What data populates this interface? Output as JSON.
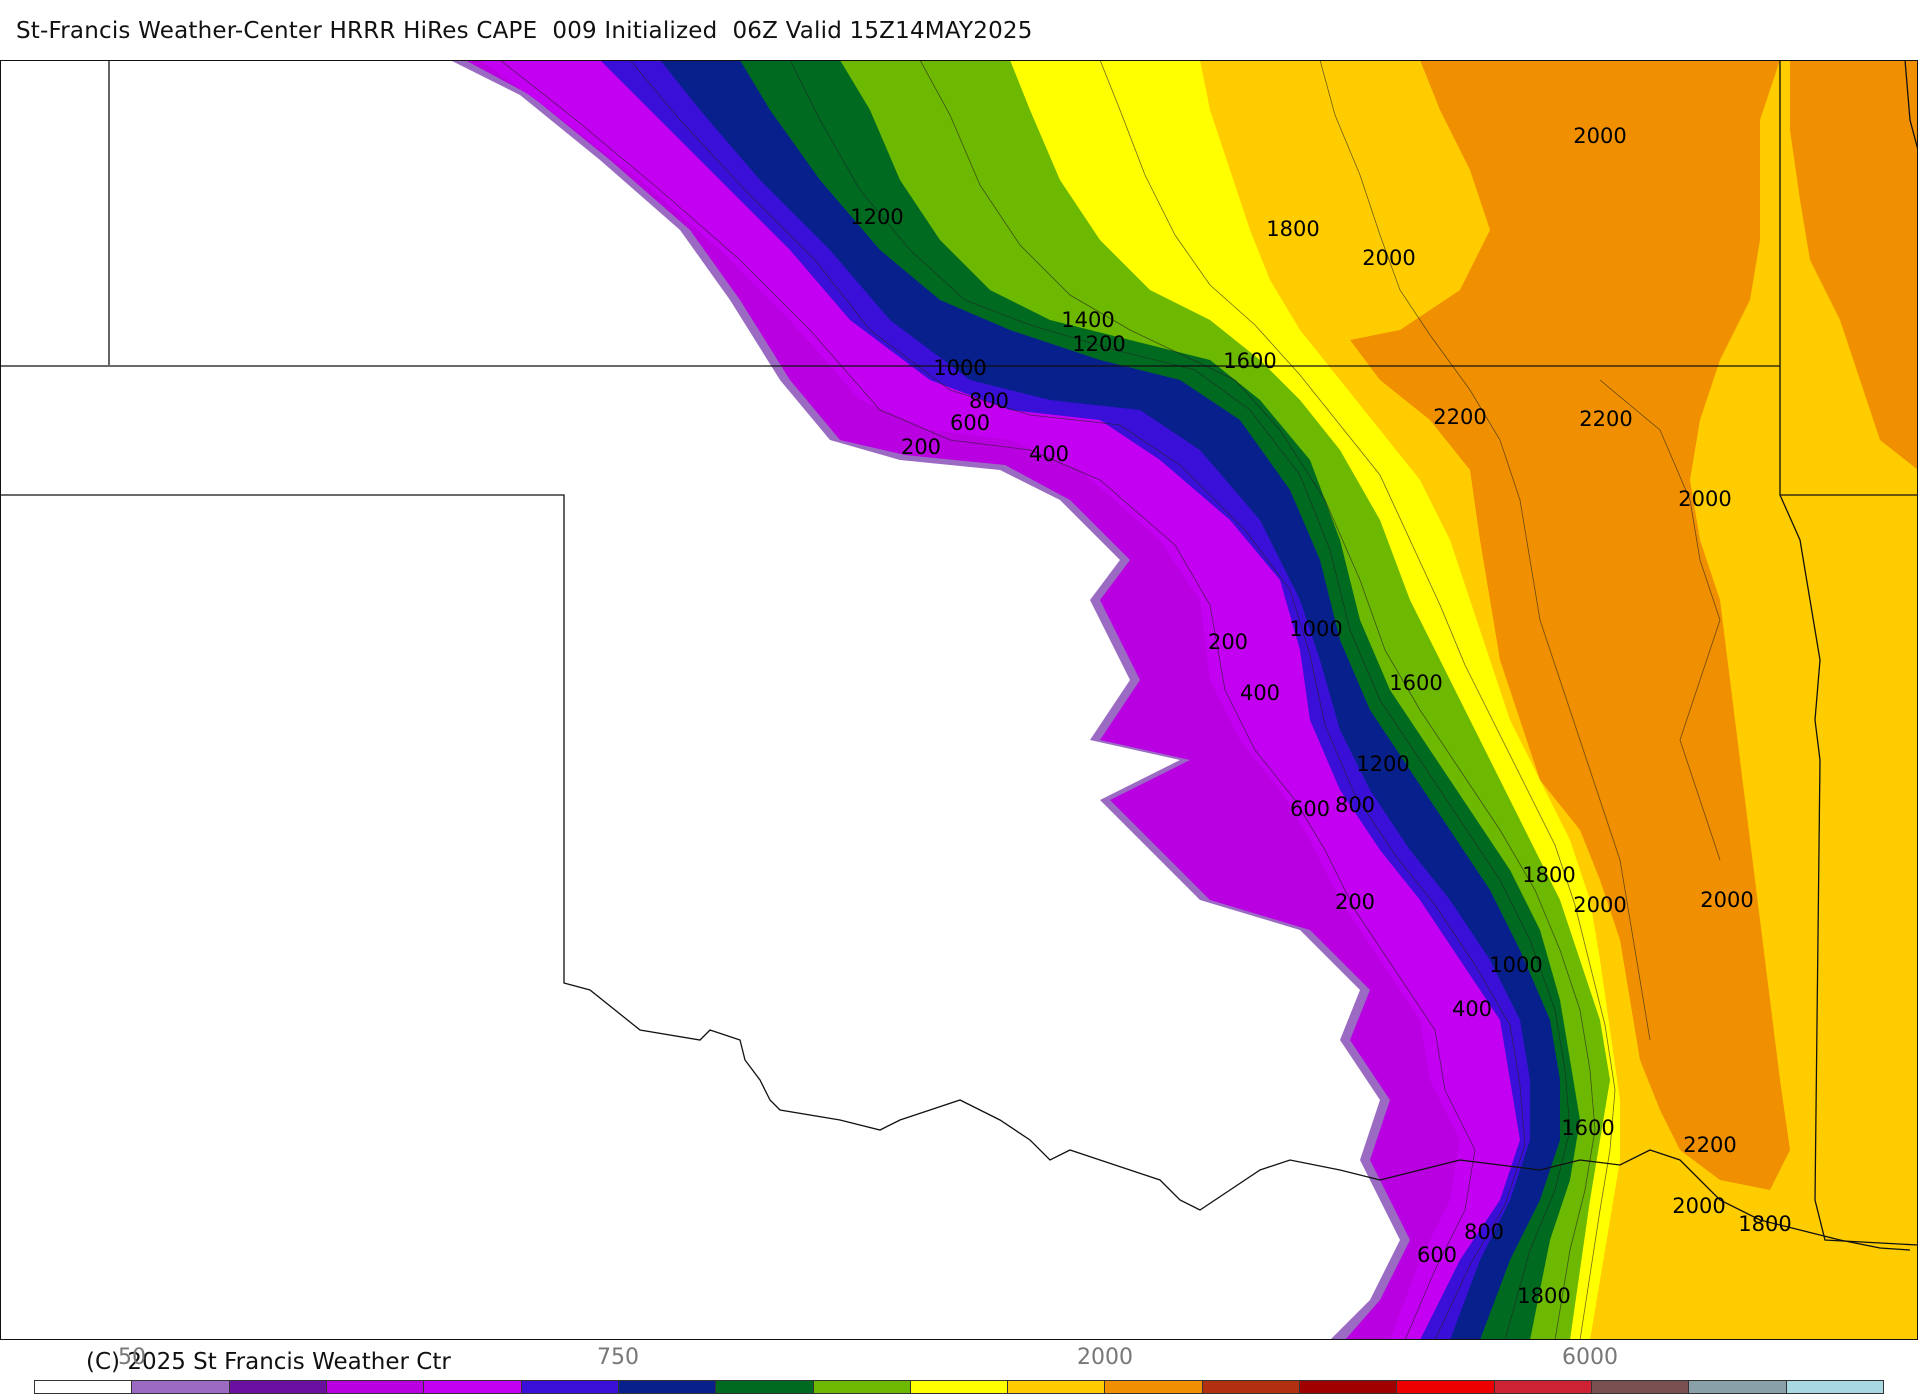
{
  "title": "St-Francis Weather-Center HRRR HiRes CAPE  009 Initialized  06Z Valid 15Z14MAY2025",
  "copyright": "(C) 2025 St Francis Weather Ctr",
  "colors": {
    "c1": "#9b6bc4",
    "c2": "#6b0fa0",
    "c3": "#b800e0",
    "c4": "#c400f2",
    "c5": "#3a10d8",
    "c6": "#08208c",
    "c7": "#006b20",
    "c8": "#6db800",
    "c9": "#ffff00",
    "c10": "#ffcc00",
    "c11": "#f09000",
    "c12": "#b03010",
    "c13": "#a00000",
    "c14": "#ee0000",
    "c15": "#cc2233",
    "c16": "#7a5050",
    "c17": "#8aa0a8",
    "c18": "#a8d8e0",
    "white": "#ffffff"
  },
  "colorbar": {
    "colors": [
      "#ffffff",
      "#9b6bc4",
      "#6b0fa0",
      "#b800e0",
      "#c400f2",
      "#3a10d8",
      "#08208c",
      "#006b20",
      "#6db800",
      "#ffff00",
      "#ffcc00",
      "#f09000",
      "#b03010",
      "#a00000",
      "#ee0000",
      "#cc2233",
      "#7a5050",
      "#8aa0a8",
      "#a8d8e0"
    ],
    "tick_labels": [
      "50",
      "750",
      "2000",
      "6000"
    ]
  },
  "contour_labels": [
    "1200",
    "1800",
    "2000",
    "2000",
    "1400",
    "1200",
    "1000",
    "800",
    "600",
    "200",
    "400",
    "1600",
    "2200",
    "2200",
    "2000",
    "200",
    "400",
    "1000",
    "1600",
    "1200",
    "800",
    "600",
    "1800",
    "2000",
    "2000",
    "200",
    "1000",
    "400",
    "1600",
    "2200",
    "2000",
    "1800",
    "800",
    "600",
    "1800"
  ]
}
